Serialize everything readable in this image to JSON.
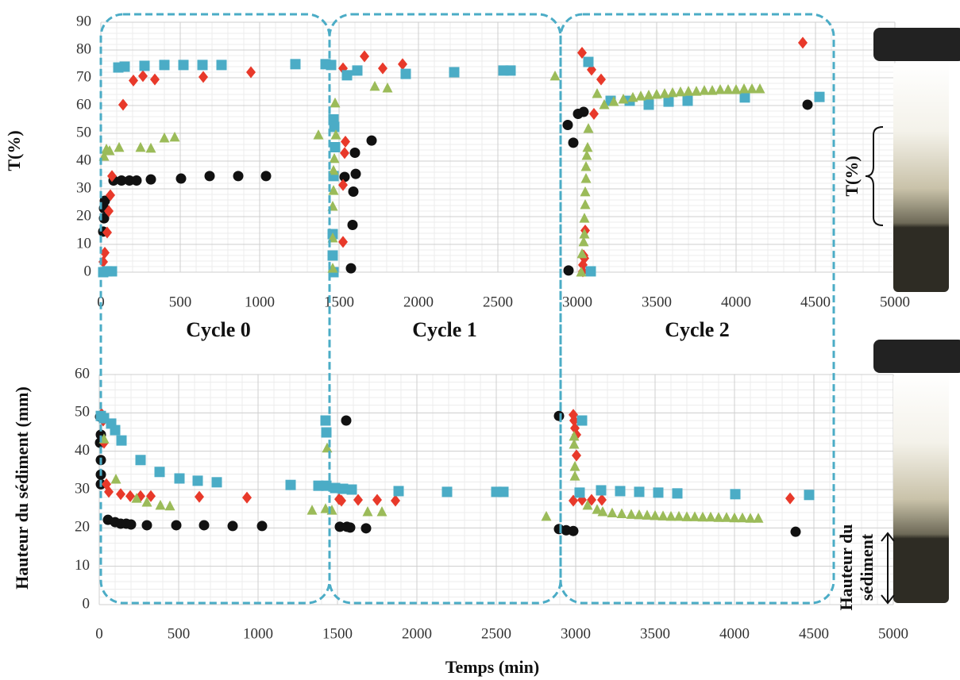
{
  "chart_data": [
    {
      "type": "scatter",
      "ylabel": "T(%)",
      "xlim": [
        0,
        5000
      ],
      "ylim": [
        0,
        90
      ],
      "xticks": [
        0,
        500,
        1000,
        1500,
        2000,
        2500,
        3000,
        3500,
        4000,
        4500,
        5000
      ],
      "yticks": [
        0,
        10,
        20,
        30,
        40,
        50,
        60,
        70,
        80,
        90
      ],
      "grid": true,
      "series": [
        {
          "color": "#111111",
          "marker": "circle",
          "x": [
            15,
            20,
            20,
            25,
            80,
            130,
            180,
            225,
            315,
            505,
            685,
            865,
            1040,
            1535,
            1600,
            1605,
            1590,
            1585,
            1575,
            1705,
            2940,
            2975,
            3005,
            3040,
            2945,
            4450
          ],
          "values": [
            14.6,
            19.4,
            23,
            25.7,
            33,
            33,
            33,
            33,
            33.4,
            33.7,
            34.6,
            34.6,
            34.6,
            34.3,
            43,
            35.4,
            29,
            17,
            1.4,
            47.4,
            53,
            46.6,
            57,
            57.7,
            0.6,
            60.3
          ]
        },
        {
          "color": "#e8392a",
          "marker": "diamond",
          "x": [
            15,
            25,
            40,
            50,
            60,
            70,
            140,
            205,
            265,
            340,
            645,
            945,
            1525,
            1540,
            1535,
            1525,
            1525,
            1660,
            1775,
            1900,
            3030,
            3090,
            3150,
            3105,
            3050,
            3040,
            3045,
            3035,
            3035,
            4420
          ],
          "values": [
            3.7,
            7,
            14.3,
            22,
            27.7,
            34.6,
            60.3,
            69,
            70.6,
            69.4,
            70.3,
            72,
            73.4,
            47,
            42.9,
            31.4,
            10.9,
            77.7,
            73.4,
            74.9,
            79,
            72.9,
            69.4,
            57,
            15,
            6,
            5,
            2.6,
            0.3,
            82.6
          ]
        },
        {
          "color": "#4bacc6",
          "marker": "square",
          "x": [
            15,
            40,
            70,
            110,
            150,
            275,
            400,
            520,
            640,
            760,
            1225,
            1415,
            1450,
            1465,
            1470,
            1475,
            1465,
            1460,
            1460,
            1465,
            1550,
            1615,
            1920,
            2225,
            2535,
            2580,
            3085,
            3070,
            3210,
            3330,
            3450,
            3575,
            3695,
            4055,
            4525
          ],
          "values": [
            0,
            0.3,
            0.3,
            73.7,
            74,
            74.3,
            74.6,
            74.6,
            74.6,
            74.6,
            74.9,
            74.9,
            74.6,
            55,
            52.3,
            45,
            34.6,
            13.7,
            6,
            0,
            70.9,
            72.6,
            71.4,
            72,
            72.6,
            72.6,
            0.3,
            75.7,
            61.7,
            61.7,
            60.3,
            61.4,
            61.7,
            62.9,
            63.1
          ]
        },
        {
          "color": "#9bbb59",
          "marker": "triangle",
          "x": [
            20,
            35,
            55,
            115,
            250,
            315,
            400,
            465,
            1370,
            1475,
            1480,
            1470,
            1465,
            1465,
            1460,
            1460,
            1460,
            1725,
            1805,
            2860,
            3025,
            3030,
            3040,
            3045,
            3045,
            3050,
            3050,
            3055,
            3055,
            3060,
            3065,
            3070,
            3125,
            3170,
            3230,
            3290,
            3350,
            3400,
            3450,
            3500,
            3550,
            3600,
            3650,
            3700,
            3750,
            3800,
            3850,
            3900,
            3950,
            4000,
            4050,
            4100,
            4150
          ],
          "values": [
            41.7,
            44.3,
            43.7,
            44.9,
            44.9,
            44.6,
            48.3,
            48.6,
            49.4,
            60.9,
            49.4,
            40.9,
            36.6,
            29.4,
            23.7,
            12.3,
            1.4,
            66.9,
            66.3,
            70.6,
            0,
            6.6,
            10.9,
            13.7,
            19.4,
            24.3,
            28.9,
            33.7,
            38,
            42,
            44.9,
            51.7,
            64.3,
            60.3,
            61.4,
            62.3,
            62.9,
            63.4,
            63.7,
            64,
            64.3,
            64.6,
            64.9,
            65.1,
            65.1,
            65.4,
            65.4,
            65.7,
            65.7,
            65.7,
            66,
            66,
            66
          ]
        }
      ]
    },
    {
      "type": "scatter",
      "ylabel": "Hauteur du sédiment (mm)",
      "xlabel": "Temps (min)",
      "xlim": [
        0,
        5000
      ],
      "ylim": [
        0,
        60
      ],
      "xticks": [
        0,
        500,
        1000,
        1500,
        2000,
        2500,
        3000,
        3500,
        4000,
        4500,
        5000
      ],
      "yticks": [
        0,
        10,
        20,
        30,
        40,
        50,
        60
      ],
      "grid": true,
      "series": [
        {
          "color": "#111111",
          "marker": "circle",
          "x": [
            5,
            10,
            5,
            10,
            10,
            10,
            55,
            100,
            135,
            170,
            200,
            300,
            485,
            660,
            840,
            1025,
            1515,
            1560,
            1580,
            1555,
            1680,
            2895,
            2895,
            2940,
            2985,
            4385
          ],
          "values": [
            49,
            44.3,
            42.2,
            37.7,
            33.9,
            31.4,
            22.1,
            21.5,
            21.1,
            21.1,
            20.9,
            20.7,
            20.7,
            20.7,
            20.5,
            20.5,
            20.3,
            20.3,
            20.1,
            48,
            19.9,
            49.2,
            19.7,
            19.4,
            19.2,
            19
          ]
        },
        {
          "color": "#e8392a",
          "marker": "diamond",
          "x": [
            15,
            25,
            30,
            45,
            60,
            135,
            195,
            260,
            325,
            630,
            930,
            1510,
            1525,
            1630,
            1750,
            1865,
            2985,
            2990,
            2995,
            3005,
            3005,
            2985,
            3040,
            3100,
            3165,
            4350
          ],
          "values": [
            49.7,
            48,
            42.2,
            31.4,
            29.4,
            28.8,
            28.3,
            28.3,
            28.3,
            28.1,
            27.9,
            27.5,
            27.1,
            27.3,
            27.3,
            27.1,
            49.5,
            48,
            46,
            44.3,
            38.9,
            27.1,
            27.3,
            27.3,
            27.3,
            27.7
          ]
        },
        {
          "color": "#4bacc6",
          "marker": "square",
          "x": [
            10,
            30,
            75,
            100,
            140,
            260,
            380,
            505,
            620,
            740,
            1205,
            1380,
            1430,
            1425,
            1430,
            1485,
            1535,
            1590,
            1885,
            2190,
            2500,
            2545,
            3040,
            3025,
            3160,
            3280,
            3400,
            3520,
            3640,
            4005,
            4470
          ],
          "values": [
            49.2,
            48.6,
            47.2,
            45.5,
            42.8,
            37.7,
            34.6,
            32.9,
            32.3,
            31.9,
            31.2,
            31,
            31,
            48,
            44.9,
            30.4,
            30.2,
            30,
            29.6,
            29.4,
            29.4,
            29.4,
            48,
            29.2,
            29.8,
            29.6,
            29.4,
            29.2,
            29,
            28.8,
            28.6
          ]
        },
        {
          "color": "#9bbb59",
          "marker": "triangle",
          "x": [
            30,
            105,
            235,
            300,
            385,
            445,
            1340,
            1425,
            1435,
            1465,
            1690,
            1780,
            2815,
            2990,
            2990,
            2995,
            2995,
            3075,
            3135,
            3170,
            3230,
            3290,
            3350,
            3400,
            3450,
            3500,
            3550,
            3600,
            3650,
            3700,
            3750,
            3800,
            3850,
            3900,
            3950,
            4000,
            4050,
            4100,
            4150
          ],
          "values": [
            43.2,
            32.7,
            27.7,
            26.7,
            25.9,
            25.7,
            24.6,
            25,
            40.8,
            24.6,
            24.2,
            24.2,
            23,
            43.9,
            41.8,
            33.5,
            36,
            25.9,
            24.8,
            24.2,
            23.9,
            23.7,
            23.5,
            23.4,
            23.3,
            23.2,
            23.1,
            23,
            23,
            22.9,
            22.9,
            22.8,
            22.8,
            22.7,
            22.7,
            22.6,
            22.6,
            22.5,
            22.5
          ]
        }
      ]
    }
  ],
  "cycles": [
    "Cycle 0",
    "Cycle 1",
    "Cycle 2"
  ],
  "tube_labels": {
    "top": "T(%)",
    "bottom": [
      "Hauteur du",
      "sédiment"
    ]
  }
}
